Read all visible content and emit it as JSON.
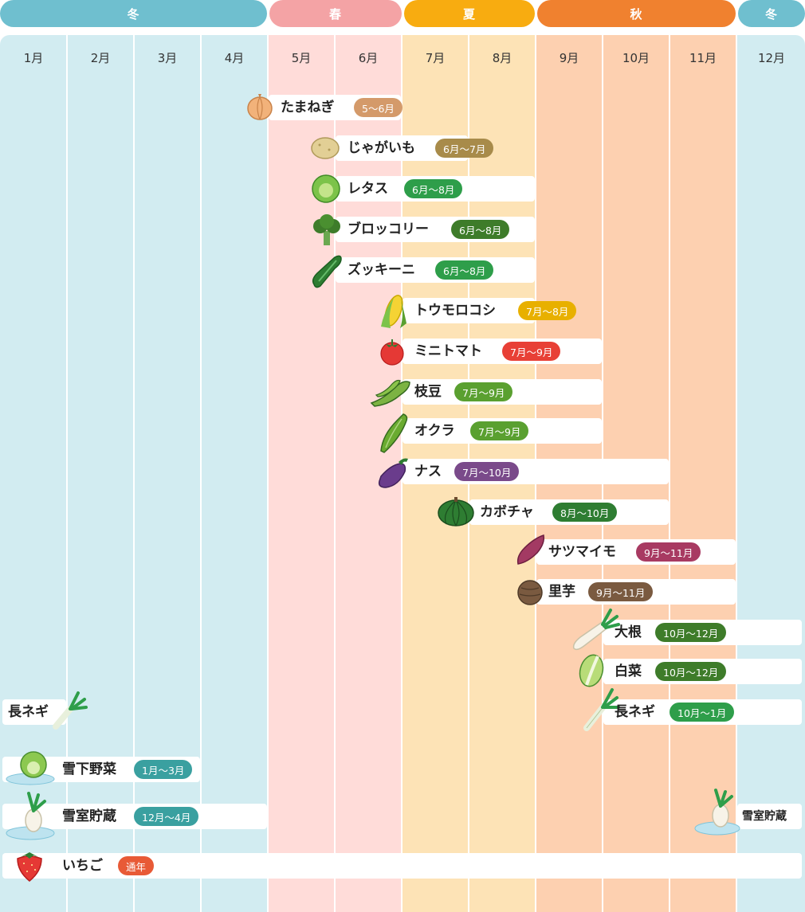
{
  "seasons": [
    {
      "label": "冬",
      "color": "#6fbfcf"
    },
    {
      "label": "春",
      "color": "#f4a3a5"
    },
    {
      "label": "夏",
      "color": "#f8ac10"
    },
    {
      "label": "秋",
      "color": "#f0812f"
    },
    {
      "label": "冬",
      "color": "#6fbfcf"
    }
  ],
  "months": [
    "1月",
    "2月",
    "3月",
    "4月",
    "5月",
    "6月",
    "7月",
    "8月",
    "9月",
    "10月",
    "11月",
    "12月"
  ],
  "chart_data": {
    "type": "table",
    "title": "",
    "rows": [
      {
        "name": "たまねぎ",
        "period": "5〜6月",
        "start": 5,
        "end": 6,
        "color": "#d49a6a",
        "icon": "onion-icon"
      },
      {
        "name": "じゃがいも",
        "period": "6月〜7月",
        "start": 6,
        "end": 7,
        "color": "#a88b4a",
        "icon": "potato-icon"
      },
      {
        "name": "レタス",
        "period": "6月〜8月",
        "start": 6,
        "end": 8,
        "color": "#2e9e4a",
        "icon": "lettuce-icon"
      },
      {
        "name": "ブロッコリー",
        "period": "6月〜8月",
        "start": 6,
        "end": 8,
        "color": "#3e7c2a",
        "icon": "broccoli-icon"
      },
      {
        "name": "ズッキーニ",
        "period": "6月〜8月",
        "start": 6,
        "end": 8,
        "color": "#2e9e4a",
        "icon": "zucchini-icon"
      },
      {
        "name": "トウモロコシ",
        "period": "7月〜8月",
        "start": 7,
        "end": 8,
        "color": "#e8b000",
        "icon": "corn-icon"
      },
      {
        "name": "ミニトマト",
        "period": "7月〜9月",
        "start": 7,
        "end": 9,
        "color": "#e84036",
        "icon": "tomato-icon"
      },
      {
        "name": "枝豆",
        "period": "7月〜9月",
        "start": 7,
        "end": 9,
        "color": "#5aa030",
        "icon": "edamame-icon"
      },
      {
        "name": "オクラ",
        "period": "7月〜9月",
        "start": 7,
        "end": 9,
        "color": "#5aa030",
        "icon": "okra-icon"
      },
      {
        "name": "ナス",
        "period": "7月〜10月",
        "start": 7,
        "end": 10,
        "color": "#7a4a8a",
        "icon": "eggplant-icon"
      },
      {
        "name": "カボチャ",
        "period": "8月〜10月",
        "start": 8,
        "end": 10,
        "color": "#2e7d32",
        "icon": "pumpkin-icon"
      },
      {
        "name": "サツマイモ",
        "period": "9月〜11月",
        "start": 9,
        "end": 11,
        "color": "#a83a62",
        "icon": "sweet-potato-icon"
      },
      {
        "name": "里芋",
        "period": "9月〜11月",
        "start": 9,
        "end": 11,
        "color": "#7a5a40",
        "icon": "taro-icon"
      },
      {
        "name": "大根",
        "period": "10月〜12月",
        "start": 10,
        "end": 12,
        "color": "#3e7c2a",
        "icon": "daikon-icon"
      },
      {
        "name": "白菜",
        "period": "10月〜12月",
        "start": 10,
        "end": 12,
        "color": "#3e7c2a",
        "icon": "chinese-cabbage-icon"
      },
      {
        "name": "長ネギ",
        "period": "10月〜1月",
        "start": 10,
        "end": 1,
        "color": "#2e9e4a",
        "icon": "leek-icon"
      },
      {
        "name": "雪下野菜",
        "period": "1月〜3月",
        "start": 1,
        "end": 3,
        "color": "#3aa0a0",
        "icon": "snow-cabbage-icon"
      },
      {
        "name": "雪室貯蔵",
        "period": "12月〜4月",
        "start": 12,
        "end": 4,
        "color": "#3aa0a0",
        "icon": "snow-daikon-icon"
      },
      {
        "name": "いちご",
        "period": "通年",
        "start": 1,
        "end": 12,
        "color": "#e85a36",
        "icon": "strawberry-icon"
      }
    ]
  },
  "leek_left_label": "長ネギ",
  "snow_storage_right_label": "雪室貯蔵"
}
